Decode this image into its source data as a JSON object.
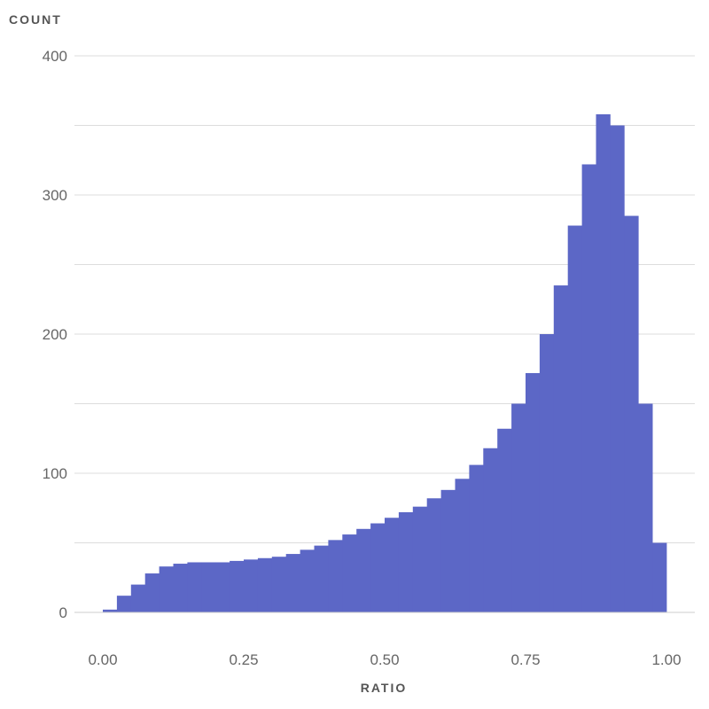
{
  "chart_data": {
    "type": "bar",
    "title": "",
    "xlabel": "RATIO",
    "ylabel": "COUNT",
    "xlim": [
      0.0,
      1.0
    ],
    "ylim": [
      0,
      400
    ],
    "x_ticks": [
      "0.00",
      "0.25",
      "0.50",
      "0.75",
      "1.00"
    ],
    "y_ticks": [
      "0",
      "100",
      "200",
      "300",
      "400"
    ],
    "grid": "horizontal",
    "color": "#5c67c6",
    "bin_width": 0.025,
    "categories": [
      "0.000-0.025",
      "0.025-0.050",
      "0.050-0.075",
      "0.075-0.100",
      "0.100-0.125",
      "0.125-0.150",
      "0.150-0.175",
      "0.175-0.200",
      "0.200-0.225",
      "0.225-0.250",
      "0.250-0.275",
      "0.275-0.300",
      "0.300-0.325",
      "0.325-0.350",
      "0.350-0.375",
      "0.375-0.400",
      "0.400-0.425",
      "0.425-0.450",
      "0.450-0.475",
      "0.475-0.500",
      "0.500-0.525",
      "0.525-0.550",
      "0.550-0.575",
      "0.575-0.600",
      "0.600-0.625",
      "0.625-0.650",
      "0.650-0.675",
      "0.675-0.700",
      "0.700-0.725",
      "0.725-0.750",
      "0.750-0.775",
      "0.775-0.800",
      "0.800-0.825",
      "0.825-0.850",
      "0.850-0.875",
      "0.875-0.900",
      "0.900-0.925",
      "0.925-0.950",
      "0.950-0.975",
      "0.975-1.000"
    ],
    "values": [
      2,
      12,
      20,
      28,
      33,
      35,
      36,
      36,
      36,
      37,
      38,
      39,
      40,
      42,
      45,
      48,
      52,
      56,
      60,
      64,
      68,
      72,
      76,
      82,
      88,
      96,
      106,
      118,
      132,
      150,
      172,
      200,
      235,
      278,
      322,
      358,
      350,
      285,
      150,
      50
    ]
  }
}
